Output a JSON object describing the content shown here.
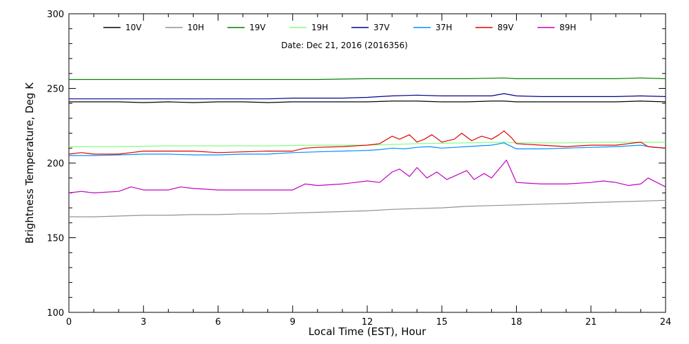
{
  "chart_data": {
    "type": "line",
    "title": "",
    "annotation": "Date: Dec 21, 2016 (2016356)",
    "xlabel": "Local Time (EST), Hour",
    "ylabel": "Brightness Temperature, Deg K",
    "xlim": [
      0,
      24
    ],
    "ylim": [
      100,
      300
    ],
    "xticks": [
      0,
      3,
      6,
      9,
      12,
      15,
      18,
      21,
      24
    ],
    "yticks": [
      100,
      150,
      200,
      250,
      300
    ],
    "grid": false,
    "legend_position": "top",
    "series": [
      {
        "name": "10V",
        "color": "#000000",
        "x": [
          0,
          1,
          2,
          3,
          4,
          5,
          6,
          7,
          8,
          9,
          10,
          11,
          12,
          13,
          14,
          15,
          16,
          17,
          17.5,
          18,
          19,
          20,
          21,
          22,
          23,
          24
        ],
        "y": [
          241,
          241,
          241,
          240.5,
          241,
          240.5,
          241,
          241,
          240.5,
          241,
          241,
          241,
          241,
          241.5,
          241.5,
          241,
          241,
          241.5,
          241.5,
          241,
          241,
          241,
          241,
          241,
          241.5,
          241
        ]
      },
      {
        "name": "10H",
        "color": "#909090",
        "x": [
          0,
          1,
          2,
          3,
          4,
          5,
          6,
          7,
          8,
          9,
          10,
          11,
          12,
          13,
          14,
          15,
          16,
          17,
          18,
          19,
          20,
          21,
          22,
          23,
          24
        ],
        "y": [
          164,
          164,
          164.5,
          165,
          165,
          165.5,
          165.5,
          166,
          166,
          166.5,
          167,
          167.5,
          168,
          169,
          169.5,
          170,
          171,
          171.5,
          172,
          172.5,
          173,
          173.5,
          174,
          174.5,
          175
        ]
      },
      {
        "name": "19V",
        "color": "#007f00",
        "x": [
          0,
          2,
          4,
          6,
          8,
          10,
          12,
          14,
          16,
          17.5,
          18,
          20,
          22,
          23,
          24
        ],
        "y": [
          256,
          256,
          256,
          256,
          256,
          256,
          256.5,
          256.5,
          256.5,
          257,
          256.5,
          256.5,
          256.5,
          257,
          256.5
        ]
      },
      {
        "name": "19H",
        "color": "#80ff80",
        "x": [
          0,
          2,
          4,
          6,
          8,
          10,
          12,
          14,
          16,
          17.5,
          18,
          20,
          22,
          24
        ],
        "y": [
          211,
          211,
          211.5,
          211.5,
          211.5,
          212,
          212,
          213,
          213.5,
          214,
          213.5,
          213.5,
          214,
          214
        ]
      },
      {
        "name": "37V",
        "color": "#00008f",
        "x": [
          0,
          1,
          2,
          3,
          4,
          5,
          6,
          7,
          8,
          9,
          10,
          11,
          12,
          13,
          14,
          15,
          16,
          17,
          17.5,
          18,
          19,
          20,
          21,
          22,
          23,
          24
        ],
        "y": [
          243,
          243,
          243,
          243,
          243,
          243,
          243,
          243,
          243,
          243.5,
          243.5,
          243.5,
          244,
          245,
          245.5,
          245,
          245,
          245,
          246.5,
          245,
          244.5,
          244.5,
          244.5,
          244.5,
          245,
          244.5
        ]
      },
      {
        "name": "37H",
        "color": "#008fff",
        "x": [
          0,
          1,
          2,
          3,
          4,
          5,
          6,
          7,
          8,
          9,
          10,
          11,
          12,
          12.5,
          13,
          13.5,
          14,
          14.5,
          15,
          15.5,
          16,
          16.5,
          17,
          17.5,
          18,
          19,
          20,
          21,
          22,
          23,
          23.5,
          24
        ],
        "y": [
          205,
          205,
          205.5,
          206,
          206,
          205.5,
          205.5,
          206,
          206,
          207,
          207.5,
          208,
          208.5,
          209,
          210,
          209.5,
          210.5,
          211,
          210,
          210.5,
          211,
          211.5,
          212,
          213.5,
          209.5,
          209.5,
          210,
          210.5,
          211,
          212,
          210.5,
          210
        ]
      },
      {
        "name": "89V",
        "color": "#e00000",
        "x": [
          0,
          0.5,
          1,
          2,
          2.5,
          3,
          4,
          5,
          6,
          7,
          8,
          9,
          9.5,
          10,
          11,
          12,
          12.5,
          13,
          13.3,
          13.7,
          14,
          14.3,
          14.6,
          15,
          15.5,
          15.8,
          16.2,
          16.6,
          17,
          17.3,
          17.5,
          17.8,
          18,
          19,
          20,
          21,
          22,
          22.5,
          23,
          23.3,
          24
        ],
        "y": [
          206,
          207,
          206,
          206,
          207,
          208,
          208,
          208,
          207,
          207.5,
          208,
          208,
          210,
          210.5,
          211,
          212,
          213,
          218,
          216,
          219,
          214,
          216,
          219,
          214,
          216,
          220,
          215,
          218,
          216,
          219,
          221.5,
          217,
          213,
          212,
          211,
          212,
          212,
          213,
          214,
          211,
          210
        ]
      },
      {
        "name": "89H",
        "color": "#c000c0",
        "x": [
          0,
          0.5,
          1,
          2,
          2.5,
          3,
          4,
          4.5,
          5,
          6,
          7,
          8,
          9,
          9.5,
          10,
          11,
          12,
          12.5,
          13,
          13.3,
          13.7,
          14,
          14.4,
          14.8,
          15.2,
          15.6,
          16,
          16.3,
          16.7,
          17,
          17.3,
          17.6,
          18,
          19,
          20,
          21,
          21.5,
          22,
          22.5,
          23,
          23.3,
          24
        ],
        "y": [
          180,
          181,
          180,
          181,
          184,
          182,
          182,
          184,
          183,
          182,
          182,
          182,
          182,
          186,
          185,
          186,
          188,
          187,
          194,
          196,
          191,
          197,
          190,
          194,
          189,
          192,
          195,
          189,
          193,
          190,
          196,
          202,
          187,
          186,
          186,
          187,
          188,
          187,
          185,
          186,
          190,
          184
        ]
      }
    ]
  }
}
